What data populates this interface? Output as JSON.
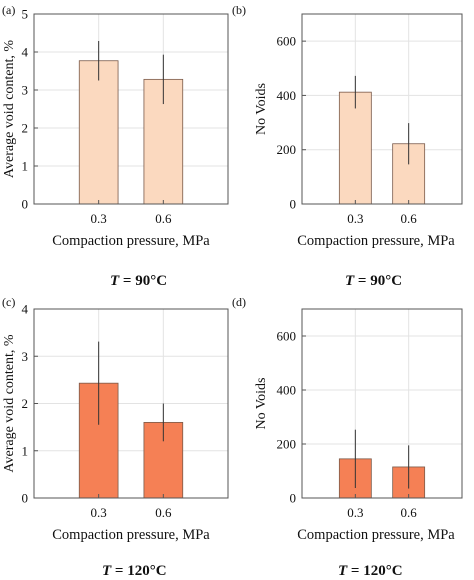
{
  "figure": {
    "panel_labels": [
      "(a)",
      "(b)",
      "(c)",
      "(d)"
    ],
    "row_captions": [
      {
        "italic": "T",
        "rest": " = 90°C"
      },
      {
        "italic": "T",
        "rest": " = 120°C"
      }
    ]
  },
  "chart_data": [
    {
      "type": "bar",
      "panel": "(a)",
      "categories": [
        "0.3",
        "0.6"
      ],
      "values": [
        3.77,
        3.28
      ],
      "errors": [
        0.52,
        0.65
      ],
      "xlabel": "Compaction pressure, MPa",
      "ylabel": "Average void content, %",
      "ylim": [
        0,
        5
      ],
      "yticks": [
        0,
        1,
        2,
        3,
        4,
        5
      ],
      "bar_color": "#fbd9bf",
      "grid": true
    },
    {
      "type": "bar",
      "panel": "(b)",
      "categories": [
        "0.3",
        "0.6"
      ],
      "values": [
        412,
        222
      ],
      "errors": [
        60,
        76
      ],
      "xlabel": "Compaction pressure, MPa",
      "ylabel": "No Voids",
      "ylim": [
        0,
        700
      ],
      "yticks": [
        0,
        200,
        400,
        600
      ],
      "bar_color": "#fbd9bf",
      "grid": true
    },
    {
      "type": "bar",
      "panel": "(c)",
      "categories": [
        "0.3",
        "0.6"
      ],
      "values": [
        2.43,
        1.6
      ],
      "errors": [
        0.88,
        0.4
      ],
      "xlabel": "Compaction pressure, MPa",
      "ylabel": "Average void content, %",
      "ylim": [
        0,
        4
      ],
      "yticks": [
        0,
        1,
        2,
        3,
        4
      ],
      "bar_color": "#f58055",
      "grid": true
    },
    {
      "type": "bar",
      "panel": "(d)",
      "categories": [
        "0.3",
        "0.6"
      ],
      "values": [
        145,
        115
      ],
      "errors": [
        108,
        80
      ],
      "xlabel": "Compaction pressure, MPa",
      "ylabel": "No Voids",
      "ylim": [
        0,
        700
      ],
      "yticks": [
        0,
        200,
        400,
        600
      ],
      "bar_color": "#f58055",
      "grid": true
    }
  ]
}
